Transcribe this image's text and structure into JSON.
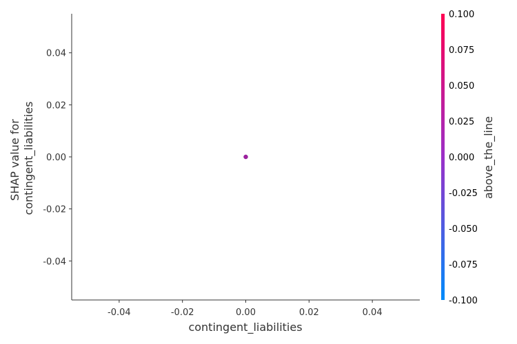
{
  "chart_data": {
    "type": "scatter",
    "xlabel": "contingent_liabilities",
    "ylabel_lines": [
      "SHAP value for",
      "contingent_liabilities"
    ],
    "xlim": [
      -0.055,
      0.055
    ],
    "ylim": [
      -0.055,
      0.055
    ],
    "xticks": [
      -0.04,
      -0.02,
      0.0,
      0.02,
      0.04
    ],
    "xtick_labels": [
      "-0.04",
      "-0.02",
      "0.00",
      "0.02",
      "0.04"
    ],
    "yticks": [
      -0.04,
      -0.02,
      0.0,
      0.02,
      0.04
    ],
    "ytick_labels": [
      "-0.04",
      "-0.02",
      "0.00",
      "0.02",
      "0.04"
    ],
    "grid": false,
    "points": [
      {
        "x": 0.0,
        "y": 0.0,
        "color_value": 0.0
      }
    ],
    "colorbar": {
      "label": "above_the_line",
      "range": [
        -0.1,
        0.1
      ],
      "ticks": [
        0.1,
        0.075,
        0.05,
        0.025,
        0.0,
        -0.025,
        -0.05,
        -0.075,
        -0.1
      ],
      "tick_labels": [
        "0.100",
        "0.075",
        "0.050",
        "0.025",
        "0.000",
        "-0.025",
        "-0.050",
        "-0.075",
        "-0.100"
      ],
      "color_low": "#008bfb",
      "color_high": "#ff0052"
    },
    "point_color": "#a020a0"
  }
}
